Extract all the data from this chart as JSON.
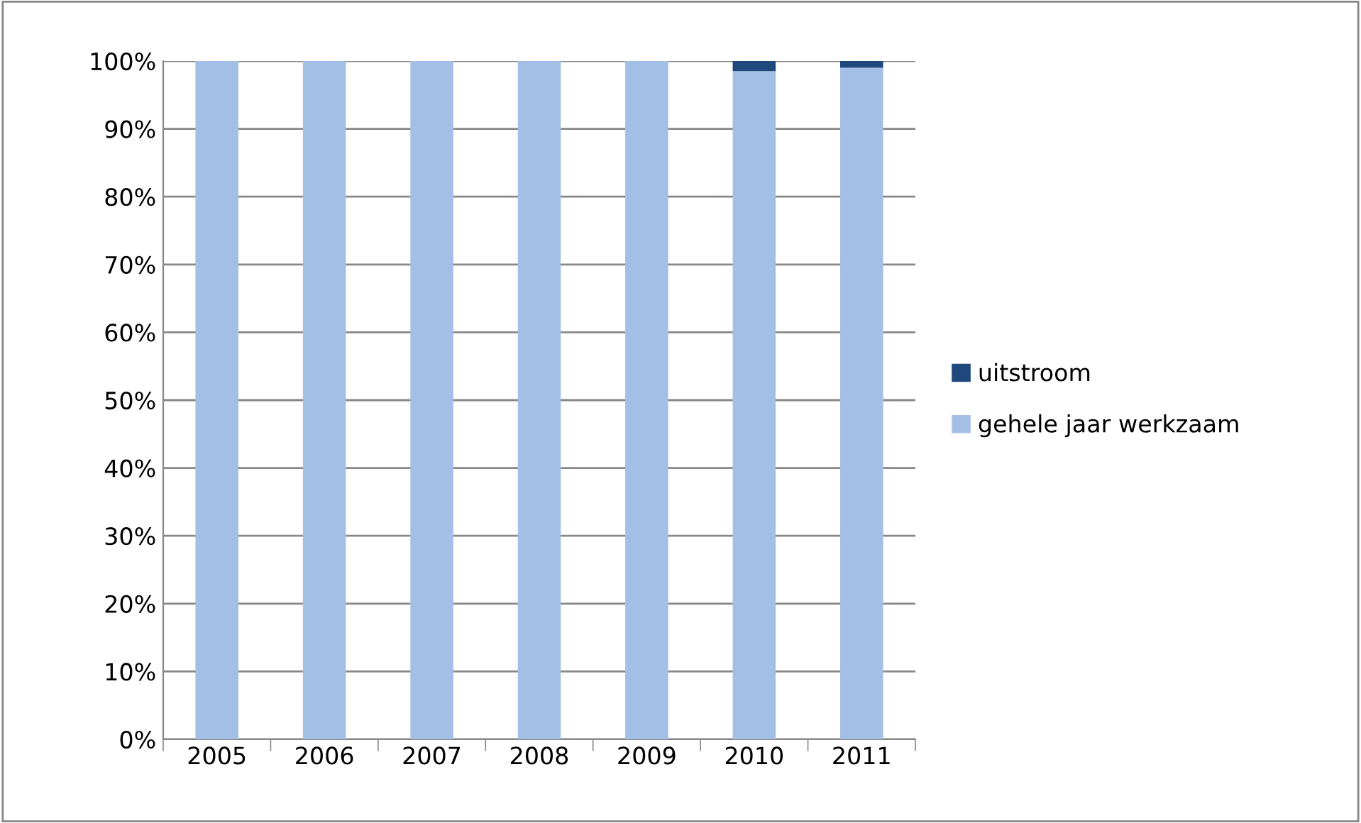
{
  "chart_data": {
    "type": "bar",
    "stacked": true,
    "categories": [
      "2005",
      "2006",
      "2007",
      "2008",
      "2009",
      "2010",
      "2011"
    ],
    "series": [
      {
        "name": "gehele jaar werkzaam",
        "color": "#a4bfe6",
        "values": [
          100,
          100,
          100,
          100,
          100,
          98.5,
          99
        ]
      },
      {
        "name": "uitstroom",
        "color": "#1f497d",
        "values": [
          0,
          0,
          0,
          0,
          0,
          1.5,
          1
        ]
      }
    ],
    "ylim": [
      0,
      100
    ],
    "yticks": [
      {
        "value": 0,
        "label": "0%"
      },
      {
        "value": 10,
        "label": "10%"
      },
      {
        "value": 20,
        "label": "20%"
      },
      {
        "value": 30,
        "label": "30%"
      },
      {
        "value": 40,
        "label": "40%"
      },
      {
        "value": 50,
        "label": "50%"
      },
      {
        "value": 60,
        "label": "60%"
      },
      {
        "value": 70,
        "label": "70%"
      },
      {
        "value": 80,
        "label": "80%"
      },
      {
        "value": 90,
        "label": "90%"
      },
      {
        "value": 100,
        "label": "100%"
      }
    ],
    "grid": "y",
    "legend": "right"
  }
}
